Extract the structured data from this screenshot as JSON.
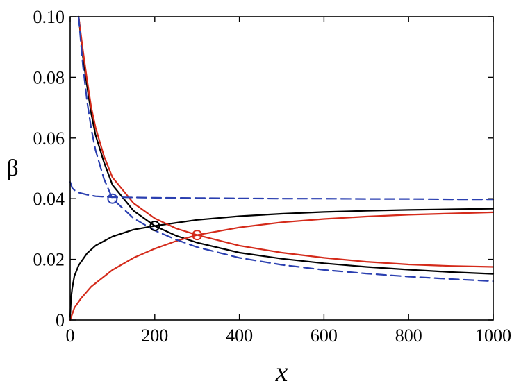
{
  "chart_data": {
    "type": "line",
    "title": "",
    "xlabel": "x",
    "ylabel": "β",
    "xlim": [
      0,
      1000
    ],
    "ylim": [
      0,
      0.1
    ],
    "xticks": [
      0,
      200,
      400,
      600,
      800,
      1000
    ],
    "xtick_labels": [
      "0",
      "200",
      "400",
      "600",
      "800",
      "1000"
    ],
    "yticks": [
      0,
      0.02,
      0.04,
      0.06,
      0.08,
      0.1
    ],
    "ytick_labels": [
      "0",
      "0.02",
      "0.04",
      "0.06",
      "0.08",
      "0.10"
    ],
    "grid": false,
    "legend": "none",
    "series": [
      {
        "color": "#000000",
        "dash": "solid",
        "kind": "increasing",
        "x": [
          0,
          2,
          5,
          10,
          20,
          40,
          60,
          100,
          150,
          200,
          300,
          400,
          500,
          600,
          700,
          800,
          900,
          1000
        ],
        "y": [
          0.001,
          0.007,
          0.0105,
          0.0145,
          0.018,
          0.022,
          0.0245,
          0.0275,
          0.0298,
          0.031,
          0.033,
          0.0342,
          0.035,
          0.0356,
          0.036,
          0.0363,
          0.0365,
          0.0367
        ]
      },
      {
        "color": "#000000",
        "dash": "solid",
        "kind": "decreasing",
        "x": [
          20,
          30,
          40,
          50,
          60,
          80,
          100,
          150,
          200,
          250,
          300,
          400,
          500,
          600,
          700,
          800,
          900,
          1000
        ],
        "y": [
          0.1,
          0.087,
          0.077,
          0.068,
          0.061,
          0.052,
          0.0445,
          0.036,
          0.031,
          0.0278,
          0.0255,
          0.0222,
          0.0202,
          0.0187,
          0.0175,
          0.0166,
          0.0158,
          0.0152
        ]
      },
      {
        "color": "#d42a1a",
        "dash": "solid",
        "kind": "increasing",
        "x": [
          0,
          10,
          25,
          50,
          100,
          150,
          200,
          250,
          300,
          400,
          500,
          600,
          700,
          800,
          900,
          1000
        ],
        "y": [
          0,
          0.004,
          0.007,
          0.011,
          0.0165,
          0.0205,
          0.0235,
          0.026,
          0.028,
          0.0305,
          0.0322,
          0.0333,
          0.0341,
          0.0347,
          0.0351,
          0.0355
        ]
      },
      {
        "color": "#d42a1a",
        "dash": "solid",
        "kind": "decreasing",
        "x": [
          20,
          30,
          40,
          50,
          60,
          80,
          100,
          150,
          200,
          250,
          300,
          400,
          500,
          600,
          700,
          800,
          900,
          1000
        ],
        "y": [
          0.1,
          0.089,
          0.079,
          0.07,
          0.0635,
          0.054,
          0.047,
          0.0385,
          0.0335,
          0.0302,
          0.028,
          0.0245,
          0.0222,
          0.0205,
          0.0192,
          0.0183,
          0.0178,
          0.0175
        ]
      },
      {
        "color": "#2a3fb0",
        "dash": "dashed",
        "kind": "flat",
        "x": [
          0,
          5,
          10,
          20,
          40,
          60,
          100,
          200,
          300,
          400,
          500,
          600,
          700,
          800,
          900,
          1000
        ],
        "y": [
          0.0455,
          0.0435,
          0.0428,
          0.042,
          0.0413,
          0.0408,
          0.0405,
          0.0403,
          0.0402,
          0.0401,
          0.04,
          0.04,
          0.0399,
          0.0399,
          0.0398,
          0.0398
        ]
      },
      {
        "color": "#2a3fb0",
        "dash": "dashed",
        "kind": "decreasing",
        "x": [
          20,
          30,
          40,
          50,
          60,
          80,
          100,
          150,
          200,
          250,
          300,
          400,
          500,
          600,
          700,
          800,
          900,
          1000
        ],
        "y": [
          0.1,
          0.084,
          0.072,
          0.063,
          0.056,
          0.0465,
          0.04,
          0.0335,
          0.0295,
          0.0265,
          0.024,
          0.0205,
          0.0182,
          0.0165,
          0.0153,
          0.0143,
          0.0135,
          0.0128
        ]
      }
    ],
    "markers": [
      {
        "x": 100,
        "y": 0.04,
        "color": "#2a3fb0"
      },
      {
        "x": 200,
        "y": 0.031,
        "color": "#000000"
      },
      {
        "x": 300,
        "y": 0.028,
        "color": "#d42a1a"
      }
    ]
  }
}
